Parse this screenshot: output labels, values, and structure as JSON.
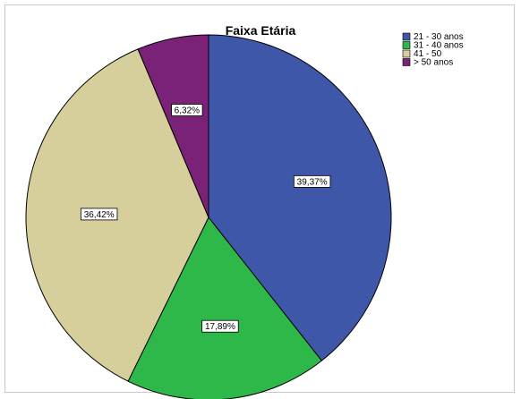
{
  "chart_data": {
    "type": "pie",
    "title": "Faixa Etária",
    "legend_position": "top-right",
    "categories": [
      "21 - 30 anos",
      "31 - 40 anos",
      "41 - 50",
      "> 50 anos"
    ],
    "values": [
      39.37,
      17.89,
      36.42,
      6.32
    ],
    "data_labels": [
      "39,37%",
      "17,89%",
      "36,42%",
      "6,32%"
    ],
    "colors": [
      "#3f57a8",
      "#2fb84a",
      "#d6cf9b",
      "#7a2278"
    ]
  }
}
